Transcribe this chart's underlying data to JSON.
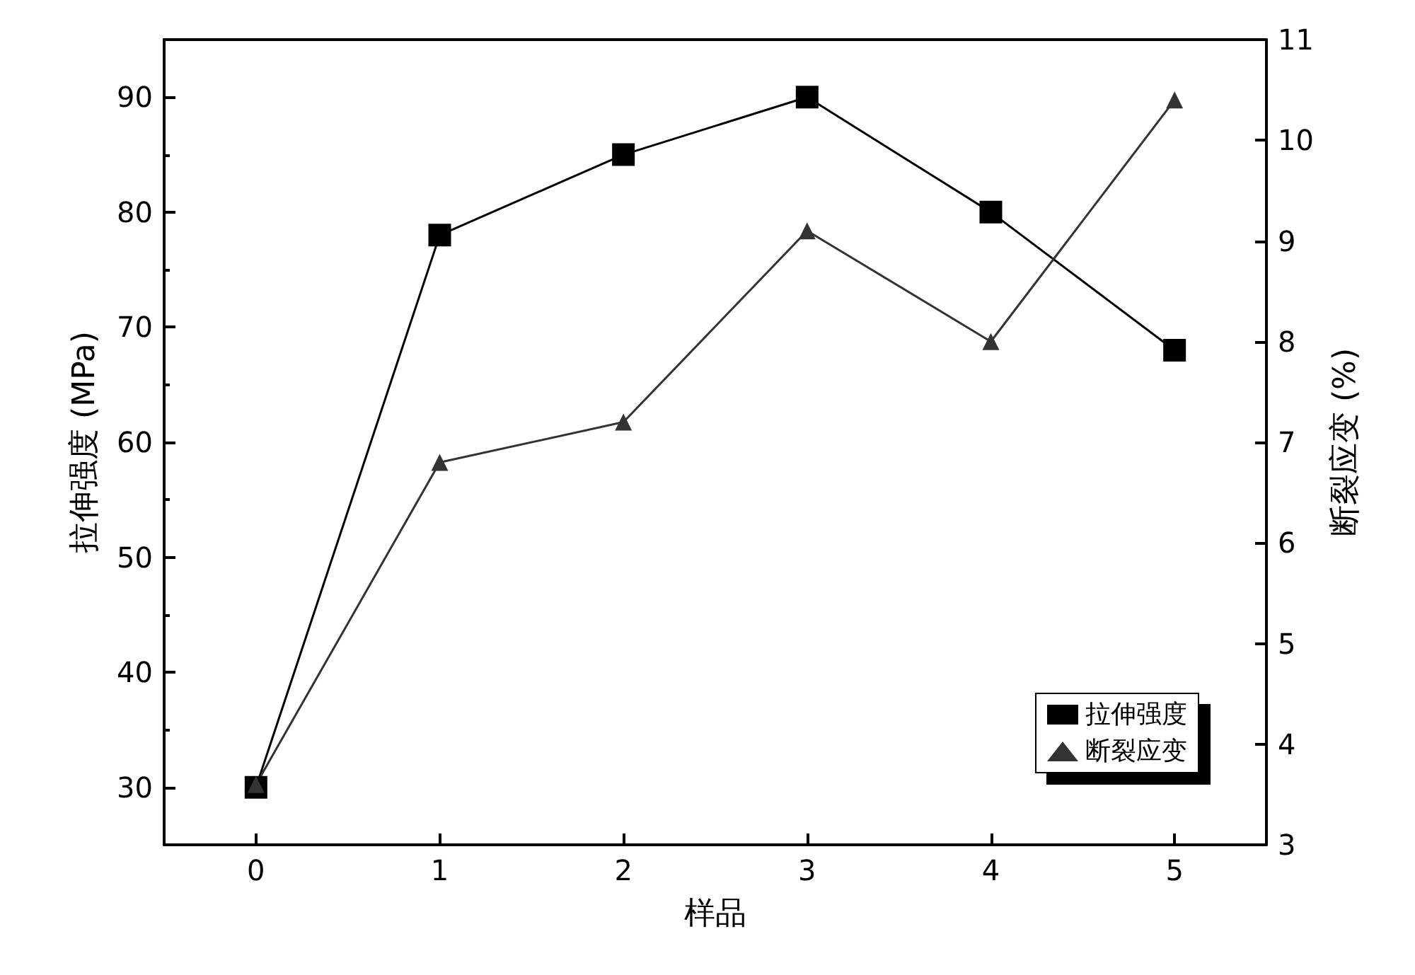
{
  "chart_data": {
    "type": "line",
    "xlabel": "样品",
    "ylabel": "拉伸强度 (MPa)",
    "y2label": "断裂应变 (%)",
    "x": [
      0,
      1,
      2,
      3,
      4,
      5
    ],
    "xlim": [
      -0.5,
      5.5
    ],
    "xticks": [
      0,
      1,
      2,
      3,
      4,
      5
    ],
    "ylim": [
      25,
      95
    ],
    "yticks": [
      30,
      40,
      50,
      60,
      70,
      80,
      90
    ],
    "y2lim": [
      3,
      11
    ],
    "y2ticks": [
      3,
      4,
      5,
      6,
      7,
      8,
      9,
      10,
      11
    ],
    "series": [
      {
        "name": "拉伸强度",
        "color": "#000000",
        "marker": "square",
        "values": [
          30,
          78,
          85,
          90,
          80,
          68
        ]
      },
      {
        "name": "断裂应变",
        "color": "#333333",
        "marker": "triangle",
        "axis": "y2",
        "values": [
          3.6,
          6.8,
          7.2,
          9.1,
          8.0,
          10.4
        ]
      }
    ],
    "grid": false,
    "legend": "bottom right",
    "line_style": "solid"
  }
}
